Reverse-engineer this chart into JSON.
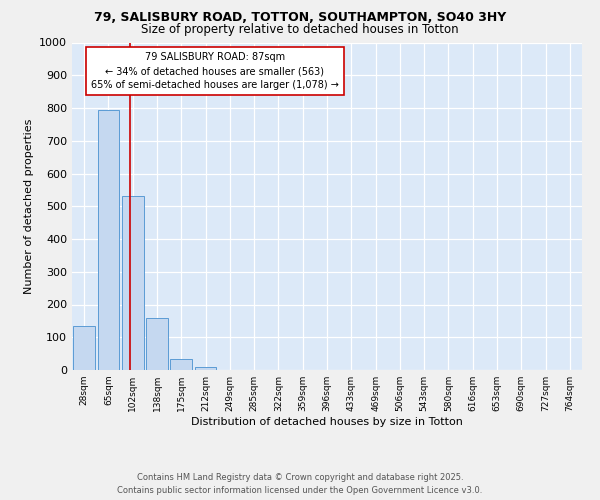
{
  "title1": "79, SALISBURY ROAD, TOTTON, SOUTHAMPTON, SO40 3HY",
  "title2": "Size of property relative to detached houses in Totton",
  "xlabel": "Distribution of detached houses by size in Totton",
  "ylabel": "Number of detached properties",
  "bar_labels": [
    "28sqm",
    "65sqm",
    "102sqm",
    "138sqm",
    "175sqm",
    "212sqm",
    "249sqm",
    "285sqm",
    "322sqm",
    "359sqm",
    "396sqm",
    "433sqm",
    "469sqm",
    "506sqm",
    "543sqm",
    "580sqm",
    "616sqm",
    "653sqm",
    "690sqm",
    "727sqm",
    "764sqm"
  ],
  "bar_values": [
    135,
    793,
    530,
    158,
    35,
    8,
    0,
    0,
    0,
    0,
    0,
    0,
    0,
    0,
    0,
    0,
    0,
    0,
    0,
    0,
    0
  ],
  "bar_color": "#c5d8f0",
  "bar_edge_color": "#5b9bd5",
  "red_line_x": 1.87,
  "annotation_text": "79 SALISBURY ROAD: 87sqm\n← 34% of detached houses are smaller (563)\n65% of semi-detached houses are larger (1,078) →",
  "annotation_box_color": "#ffffff",
  "annotation_box_edge": "#cc0000",
  "ylim": [
    0,
    1000
  ],
  "yticks": [
    0,
    100,
    200,
    300,
    400,
    500,
    600,
    700,
    800,
    900,
    1000
  ],
  "background_color": "#dce9f8",
  "fig_background": "#f0f0f0",
  "grid_color": "#ffffff",
  "footer_line1": "Contains HM Land Registry data © Crown copyright and database right 2025.",
  "footer_line2": "Contains public sector information licensed under the Open Government Licence v3.0."
}
